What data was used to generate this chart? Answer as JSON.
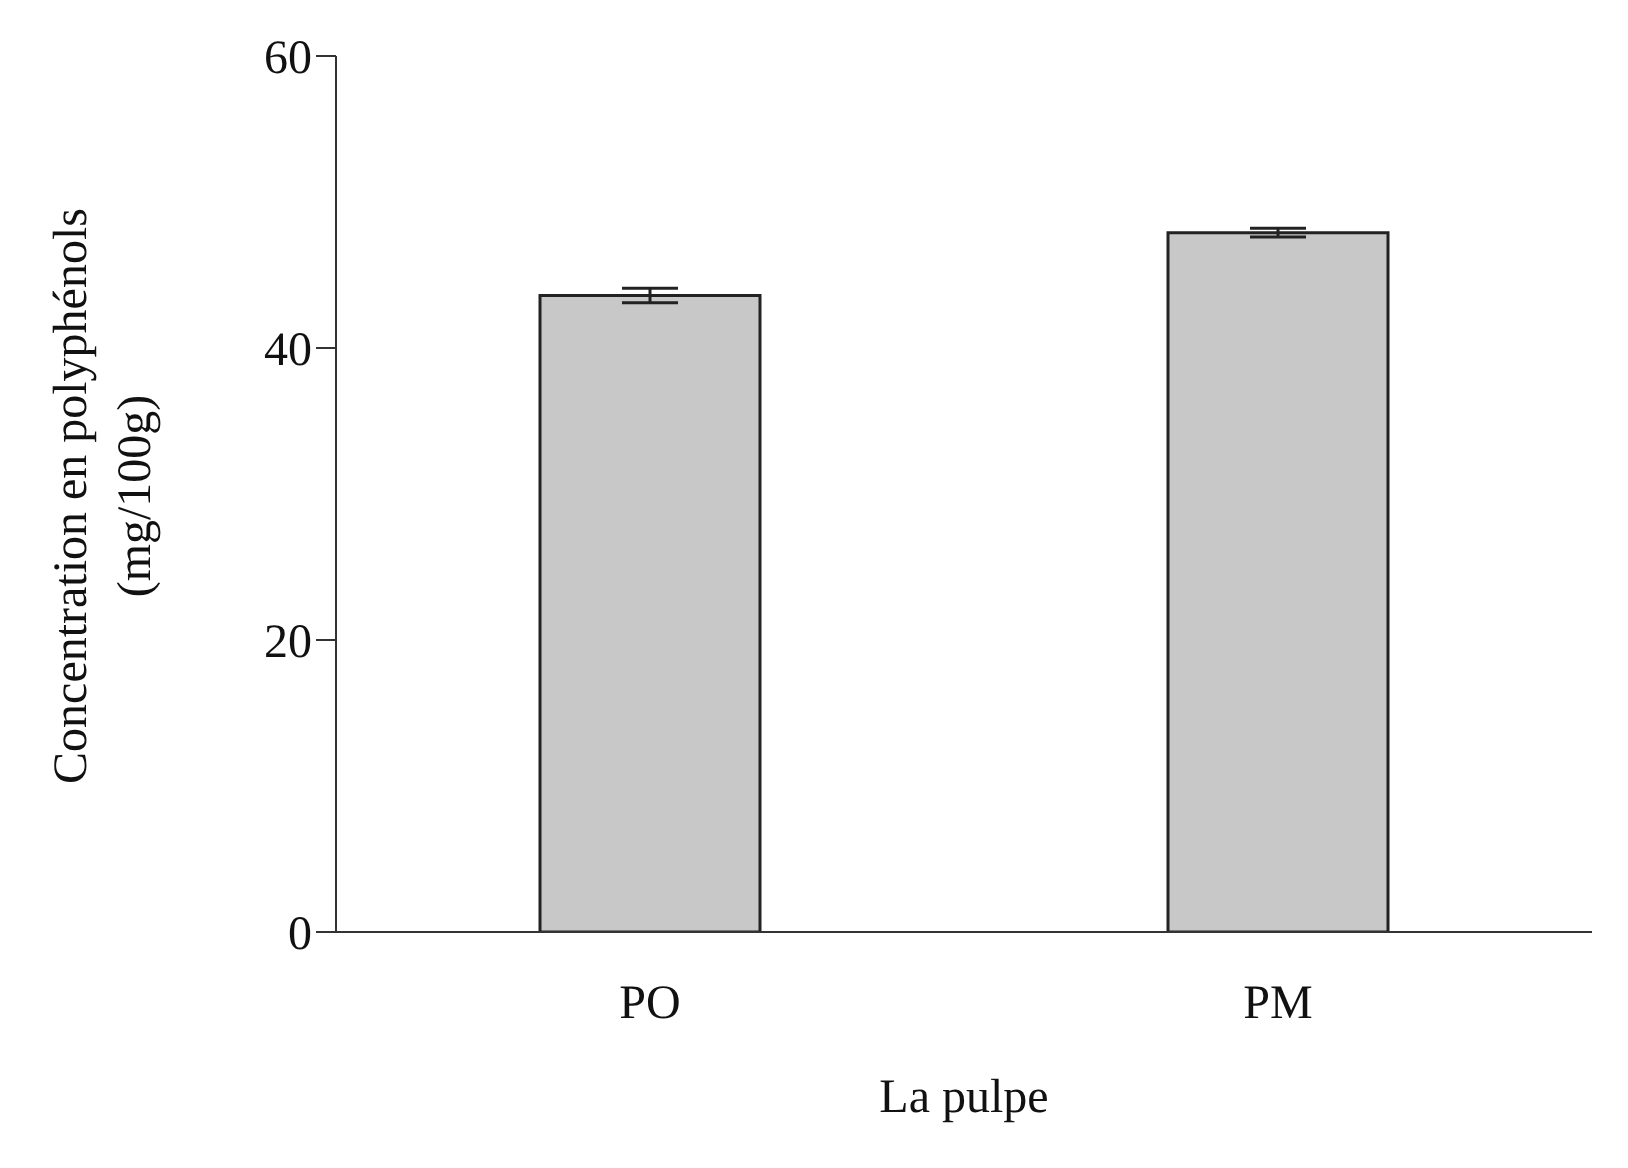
{
  "chart_data": {
    "type": "bar",
    "xlabel": "La pulpe",
    "ylabel": "Concentration en polyphénols\n(mg/100g)",
    "categories": [
      "PO",
      "PM"
    ],
    "values": [
      43.6,
      47.9
    ],
    "errors": [
      0.5,
      0.3
    ],
    "color": "#c8c8c8",
    "ylim": [
      0,
      60
    ],
    "yticks": [
      0,
      20,
      40,
      60
    ],
    "grid": false
  }
}
